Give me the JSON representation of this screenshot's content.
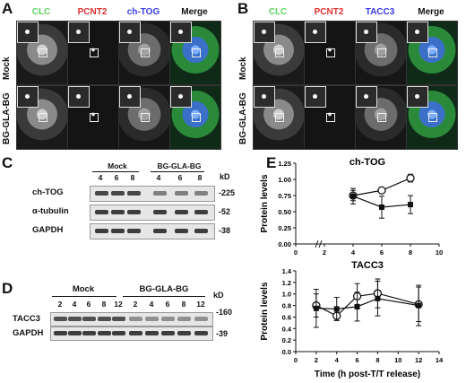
{
  "panels": {
    "A": {
      "letter": "A",
      "headers": [
        "CLC",
        "PCNT2",
        "ch-TOG",
        "Merge"
      ],
      "header_colors": [
        "#5fd35f",
        "#e03030",
        "#3a3aee",
        "#111111"
      ],
      "rows": [
        "Mock",
        "BG-GLA-BG"
      ]
    },
    "B": {
      "letter": "B",
      "headers": [
        "CLC",
        "PCNT2",
        "TACC3",
        "Merge"
      ],
      "header_colors": [
        "#5fd35f",
        "#e03030",
        "#3a3aee",
        "#111111"
      ],
      "rows": [
        "Mock",
        "BG-GLA-BG"
      ]
    },
    "C": {
      "letter": "C",
      "group_labels": [
        "Mock",
        "BG-GLA-BG"
      ],
      "lanes": [
        "4",
        "6",
        "8",
        "4",
        "6",
        "8"
      ],
      "kd_unit": "kD",
      "blots": [
        {
          "label": "ch-TOG",
          "kd": "-225"
        },
        {
          "label": "α-tubulin",
          "kd": "-52"
        },
        {
          "label": "GAPDH",
          "kd": "-38"
        }
      ]
    },
    "D": {
      "letter": "D",
      "group_labels": [
        "Mock",
        "BG-GLA-BG"
      ],
      "lanes": [
        "2",
        "4",
        "6",
        "8",
        "12",
        "2",
        "4",
        "6",
        "8",
        "12"
      ],
      "kd_unit": "kD",
      "kd_top": "-160",
      "blots": [
        {
          "label": "TACC3",
          "kd": ""
        },
        {
          "label": "GAPDH",
          "kd": "-39"
        }
      ]
    },
    "E": {
      "letter": "E"
    }
  },
  "chart_data": [
    {
      "type": "line",
      "title": "ch-TOG",
      "ylabel": "Protein levels",
      "xlabel": "",
      "xlim": [
        0,
        10
      ],
      "ylim": [
        0,
        1.25
      ],
      "xticks": [
        0,
        2,
        4,
        6,
        8,
        10
      ],
      "yticks": [
        0.0,
        0.25,
        0.5,
        0.75,
        1.0,
        1.25
      ],
      "ytick_labels": [
        "0.00",
        "0.25",
        "0.50",
        "0.75",
        "1.00",
        "1.25"
      ],
      "axis_break": true,
      "series": [
        {
          "marker": "open-circle",
          "x": [
            4,
            6,
            8
          ],
          "y": [
            0.75,
            0.83,
            1.02
          ],
          "err": [
            0.08,
            0.04,
            0.06
          ]
        },
        {
          "marker": "filled-square",
          "x": [
            4,
            6,
            8
          ],
          "y": [
            0.74,
            0.57,
            0.61
          ],
          "err": [
            0.12,
            0.17,
            0.14
          ]
        }
      ]
    },
    {
      "type": "line",
      "title": "TACC3",
      "ylabel": "Protein levels",
      "xlabel": "Time (h post-T/T release)",
      "xlim": [
        0,
        14
      ],
      "ylim": [
        0,
        1.4
      ],
      "xticks": [
        0,
        2,
        4,
        6,
        8,
        10,
        12,
        14
      ],
      "yticks": [
        0.0,
        0.2,
        0.4,
        0.6,
        0.8,
        1.0,
        1.2,
        1.4
      ],
      "ytick_labels": [
        "0.0",
        "0.2",
        "0.4",
        "0.6",
        "0.8",
        "1.0",
        "1.2",
        "1.4"
      ],
      "series": [
        {
          "marker": "open-circle",
          "x": [
            2,
            4,
            6,
            8,
            12
          ],
          "y": [
            0.8,
            0.62,
            0.96,
            1.01,
            0.82
          ],
          "err": [
            0.2,
            0.08,
            0.22,
            0.25,
            0.3
          ]
        },
        {
          "marker": "filled-square",
          "x": [
            2,
            4,
            6,
            8,
            12
          ],
          "y": [
            0.75,
            0.74,
            0.78,
            0.92,
            0.8
          ],
          "err": [
            0.33,
            0.2,
            0.25,
            0.3,
            0.35
          ]
        }
      ]
    }
  ]
}
